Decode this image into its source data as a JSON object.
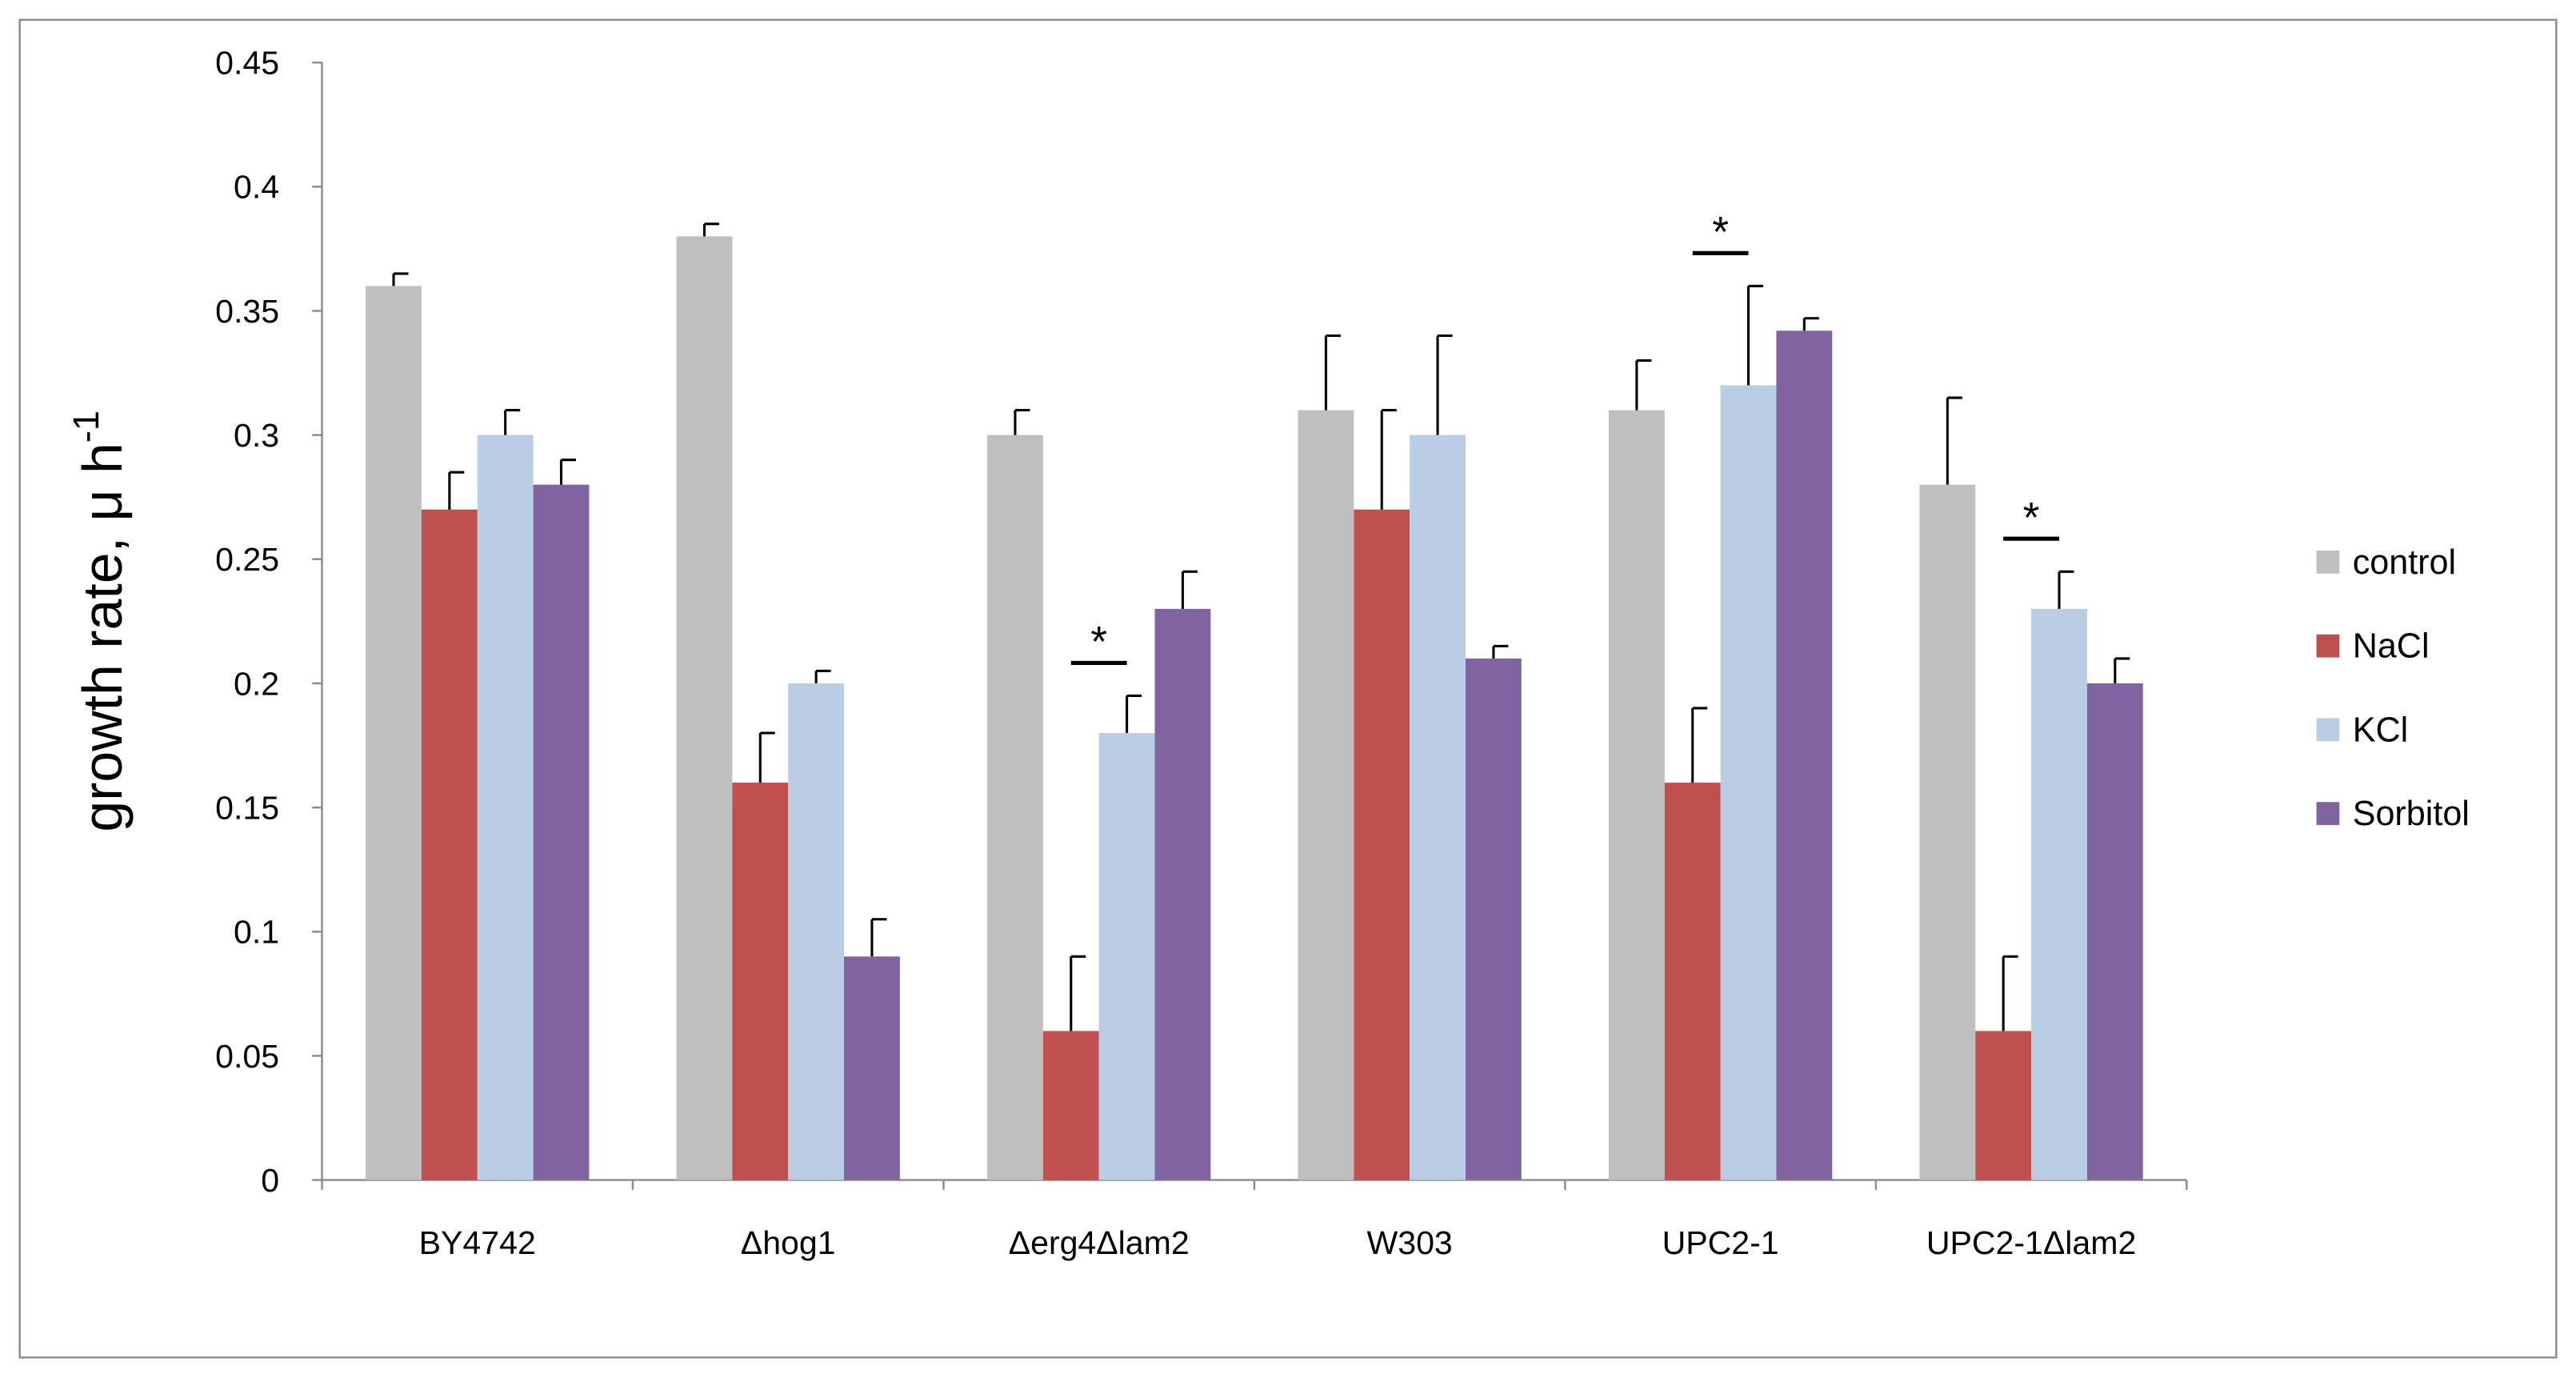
{
  "chart_data": {
    "type": "bar",
    "y_label": "growth rate, μ h",
    "y_label_superscript": "-1",
    "categories": [
      "BY4742",
      "Δhog1",
      "Δerg4Δlam2",
      "W303",
      "UPC2-1",
      "UPC2-1Δlam2"
    ],
    "series": [
      {
        "name": "control",
        "color": "#bfbfbf",
        "values": [
          0.36,
          0.38,
          0.3,
          0.31,
          0.31,
          0.28
        ],
        "errors": [
          0.005,
          0.005,
          0.01,
          0.03,
          0.02,
          0.035
        ]
      },
      {
        "name": "NaCl",
        "color": "#c0504d",
        "values": [
          0.27,
          0.16,
          0.06,
          0.27,
          0.16,
          0.06
        ],
        "errors": [
          0.015,
          0.02,
          0.03,
          0.04,
          0.03,
          0.03
        ]
      },
      {
        "name": "KCl",
        "color": "#b9cde5",
        "values": [
          0.3,
          0.2,
          0.18,
          0.3,
          0.32,
          0.23
        ],
        "errors": [
          0.01,
          0.005,
          0.015,
          0.04,
          0.04,
          0.015
        ]
      },
      {
        "name": "Sorbitol",
        "color": "#8064a2",
        "values": [
          0.28,
          0.09,
          0.23,
          0.21,
          0.342,
          0.2
        ],
        "errors": [
          0.01,
          0.015,
          0.015,
          0.005,
          0.005,
          0.01
        ]
      }
    ],
    "annotations": [
      {
        "text": "*",
        "category": 2,
        "between": [
          "NaCl",
          "KCl"
        ]
      },
      {
        "text": "*",
        "category": 4,
        "between": [
          "NaCl",
          "KCl"
        ]
      },
      {
        "text": "*",
        "category": 5,
        "between": [
          "NaCl",
          "KCl"
        ]
      }
    ],
    "ylim": [
      0,
      0.45
    ],
    "yticks": [
      0,
      0.05,
      0.1,
      0.15,
      0.2,
      0.25,
      0.3,
      0.35,
      0.4,
      0.45
    ],
    "legend": "right"
  }
}
